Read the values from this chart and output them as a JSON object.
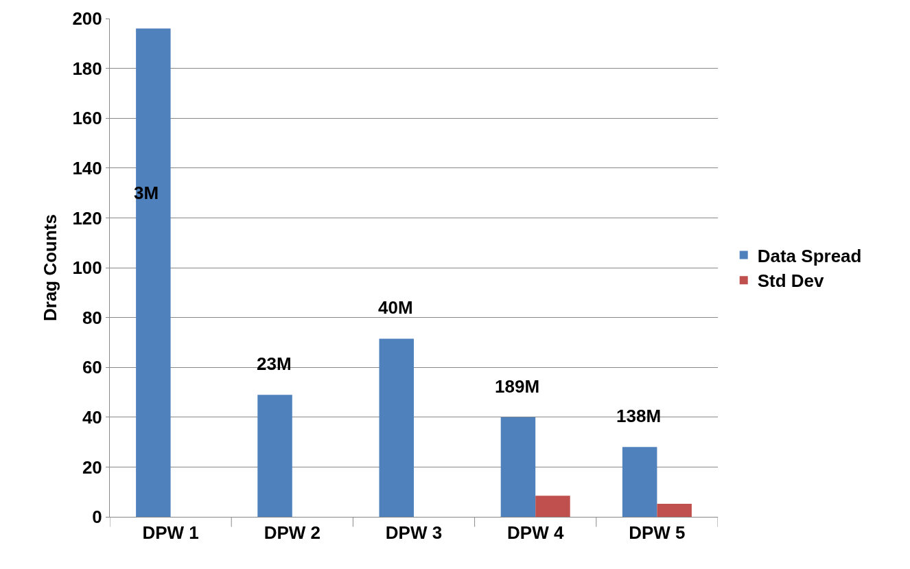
{
  "chart_data": {
    "type": "bar",
    "ylabel": "Drag Counts",
    "categories": [
      "DPW 1",
      "DPW 2",
      "DPW 3",
      "DPW 4",
      "DPW 5"
    ],
    "series": [
      {
        "name": "Data Spread",
        "color": "#4f81bd",
        "values": [
          196,
          49,
          71.5,
          40,
          28
        ]
      },
      {
        "name": "Std Dev",
        "color": "#c0504d",
        "values": [
          null,
          null,
          null,
          8.5,
          5.2
        ]
      }
    ],
    "ylim": [
      0,
      200
    ],
    "yticks": [
      0,
      20,
      40,
      60,
      80,
      100,
      120,
      140,
      160,
      180,
      200
    ],
    "grid": "y",
    "legend": "right",
    "annotations": [
      "3M",
      "23M",
      "40M",
      "189M",
      "138M"
    ]
  }
}
